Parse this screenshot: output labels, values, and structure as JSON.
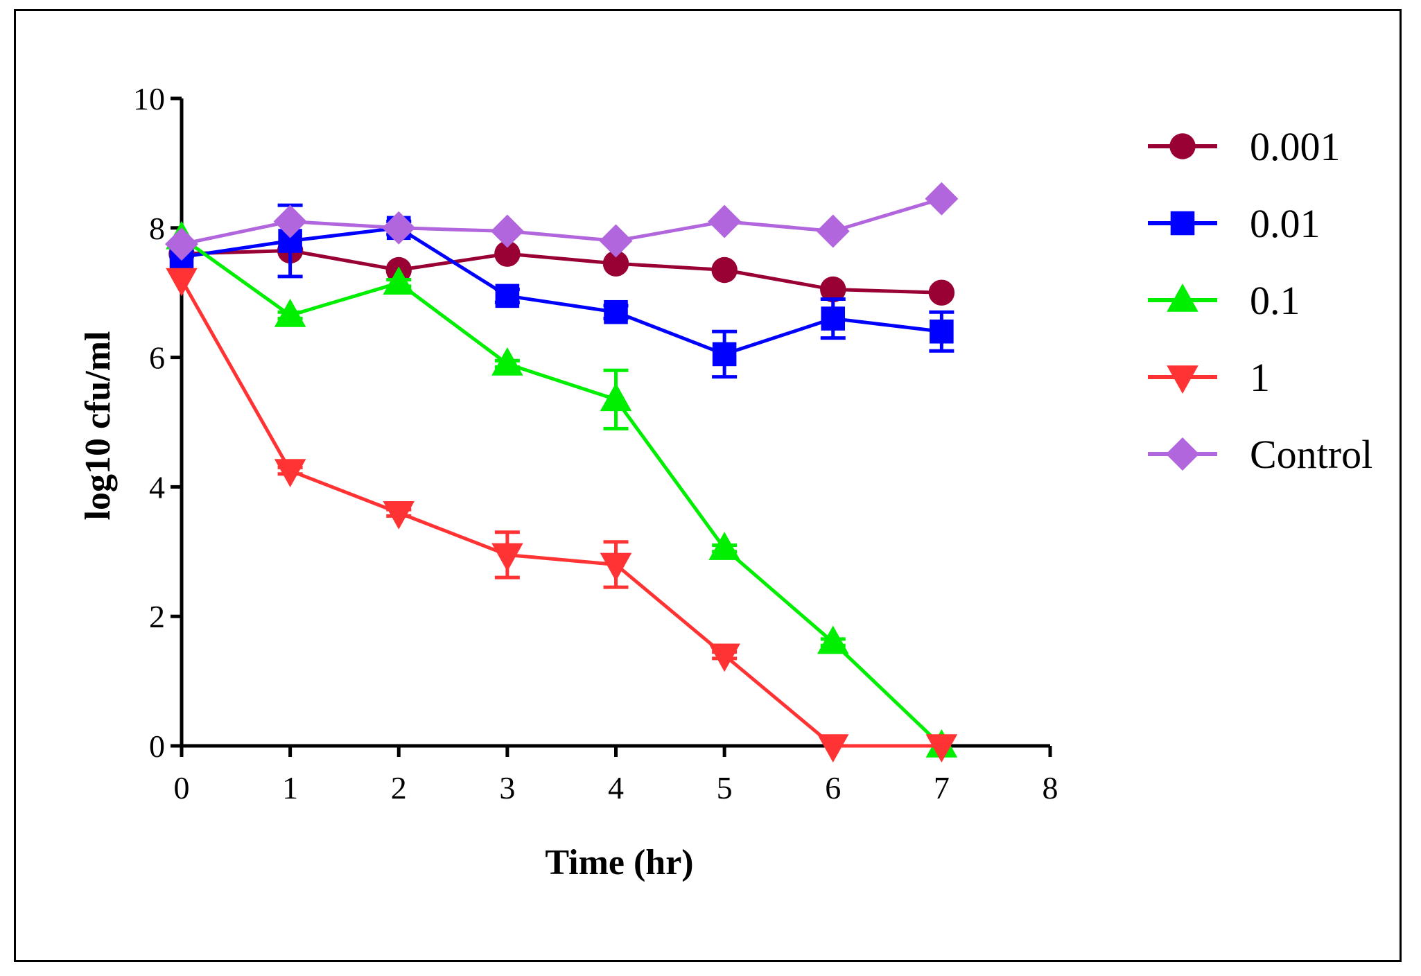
{
  "chart_data": {
    "type": "line",
    "title": "",
    "xlabel": "Time (hr)",
    "ylabel": "log10 cfu/ml",
    "xlim": [
      0,
      8
    ],
    "ylim": [
      0,
      10
    ],
    "xticks": [
      0,
      1,
      2,
      3,
      4,
      5,
      6,
      7,
      8
    ],
    "yticks": [
      0,
      2,
      4,
      6,
      8,
      10
    ],
    "grid": false,
    "legend_position": "right",
    "series": [
      {
        "name": "0.001",
        "color": "#990033",
        "marker": "circle",
        "x": [
          0,
          1,
          2,
          3,
          4,
          5,
          6,
          7
        ],
        "y": [
          7.6,
          7.65,
          7.35,
          7.6,
          7.45,
          7.35,
          7.05,
          7.0
        ],
        "err": [
          0,
          0,
          0,
          0,
          0,
          0,
          0,
          0
        ]
      },
      {
        "name": "0.01",
        "color": "#0000ff",
        "marker": "square",
        "x": [
          0,
          1,
          2,
          3,
          4,
          5,
          6,
          7
        ],
        "y": [
          7.55,
          7.8,
          8.0,
          6.95,
          6.7,
          6.05,
          6.6,
          6.4
        ],
        "err": [
          0,
          0.55,
          0.1,
          0.1,
          0.1,
          0.35,
          0.3,
          0.3
        ]
      },
      {
        "name": "0.1",
        "color": "#00ee00",
        "marker": "triangle-up",
        "x": [
          0,
          1,
          2,
          3,
          4,
          5,
          6,
          7
        ],
        "y": [
          7.85,
          6.65,
          7.15,
          5.9,
          5.35,
          3.05,
          1.6,
          0.0
        ],
        "err": [
          0,
          0.05,
          0.05,
          0.05,
          0.45,
          0.05,
          0.05,
          0
        ]
      },
      {
        "name": "1",
        "color": "#ff3333",
        "marker": "triangle-down",
        "x": [
          0,
          1,
          2,
          3,
          4,
          5,
          6,
          7
        ],
        "y": [
          7.2,
          4.25,
          3.6,
          2.95,
          2.8,
          1.4,
          0.0,
          0.0
        ],
        "err": [
          0,
          0.05,
          0.05,
          0.35,
          0.35,
          0.05,
          0,
          0
        ]
      },
      {
        "name": "Control",
        "color": "#b266dd",
        "marker": "diamond",
        "x": [
          0,
          1,
          2,
          3,
          4,
          5,
          6,
          7
        ],
        "y": [
          7.75,
          8.1,
          8.0,
          7.95,
          7.8,
          8.1,
          7.95,
          8.45
        ],
        "err": [
          0,
          0,
          0,
          0,
          0,
          0,
          0,
          0
        ]
      }
    ]
  }
}
